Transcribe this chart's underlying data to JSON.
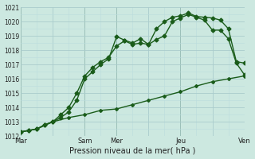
{
  "xlabel": "Pression niveau de la mer( hPa )",
  "bg_color": "#cce8e0",
  "grid_major_color": "#aacccc",
  "grid_minor_color": "#bbdddd",
  "vline_color": "#336633",
  "line_color": "#1a5c1a",
  "ylim": [
    1012,
    1021
  ],
  "yticks": [
    1012,
    1013,
    1014,
    1015,
    1016,
    1017,
    1018,
    1019,
    1020,
    1021
  ],
  "xtick_labels": [
    "Mar",
    "",
    "Sam",
    "Mer",
    "",
    "Jeu",
    "",
    "Ven"
  ],
  "xtick_pos": [
    0,
    1,
    2,
    3,
    4,
    5,
    6,
    7
  ],
  "vlines": [
    0,
    2,
    3,
    5,
    7
  ],
  "line1_x": [
    0.0,
    0.25,
    0.5,
    0.75,
    1.0,
    1.25,
    1.5,
    1.75,
    2.0,
    2.25,
    2.5,
    2.75,
    3.0,
    3.25,
    3.5,
    3.75,
    4.0,
    4.25,
    4.5,
    4.75,
    5.0,
    5.25,
    5.5,
    5.75,
    6.0,
    6.25,
    6.5,
    6.75,
    7.0
  ],
  "line1_y": [
    1012.3,
    1012.4,
    1012.5,
    1012.8,
    1013.0,
    1013.5,
    1014.0,
    1015.0,
    1016.2,
    1016.8,
    1017.2,
    1017.5,
    1018.3,
    1018.65,
    1018.4,
    1018.5,
    1018.4,
    1018.75,
    1019.0,
    1020.0,
    1020.25,
    1020.5,
    1020.3,
    1020.1,
    1019.4,
    1019.4,
    1018.8,
    1017.1,
    1016.3
  ],
  "line2_x": [
    0.0,
    0.25,
    0.5,
    0.75,
    1.0,
    1.25,
    1.5,
    1.75,
    2.0,
    2.25,
    2.5,
    2.75,
    3.0,
    3.25,
    3.5,
    3.75,
    4.0,
    4.25,
    4.5,
    4.75,
    5.0,
    5.25,
    5.5,
    5.75,
    6.0,
    6.25,
    6.5,
    6.75,
    7.0
  ],
  "line2_y": [
    1012.3,
    1012.4,
    1012.5,
    1012.8,
    1013.0,
    1013.3,
    1013.7,
    1014.5,
    1016.0,
    1016.5,
    1017.0,
    1017.4,
    1018.95,
    1018.7,
    1018.5,
    1018.8,
    1018.4,
    1019.5,
    1020.0,
    1020.3,
    1020.4,
    1020.6,
    1020.35,
    1020.3,
    1020.25,
    1020.1,
    1019.5,
    1017.2,
    1017.1
  ],
  "line3_x": [
    0.0,
    0.5,
    1.0,
    1.5,
    2.0,
    2.5,
    3.0,
    3.5,
    4.0,
    4.5,
    5.0,
    5.5,
    6.0,
    6.5,
    7.0
  ],
  "line3_y": [
    1012.3,
    1012.5,
    1013.0,
    1013.3,
    1013.5,
    1013.8,
    1013.9,
    1014.2,
    1014.5,
    1014.8,
    1015.1,
    1015.5,
    1015.8,
    1016.0,
    1016.2
  ],
  "marker_size": 2.5,
  "line_width": 1.0,
  "xlabel_fontsize": 7,
  "tick_fontsize": 5.5
}
